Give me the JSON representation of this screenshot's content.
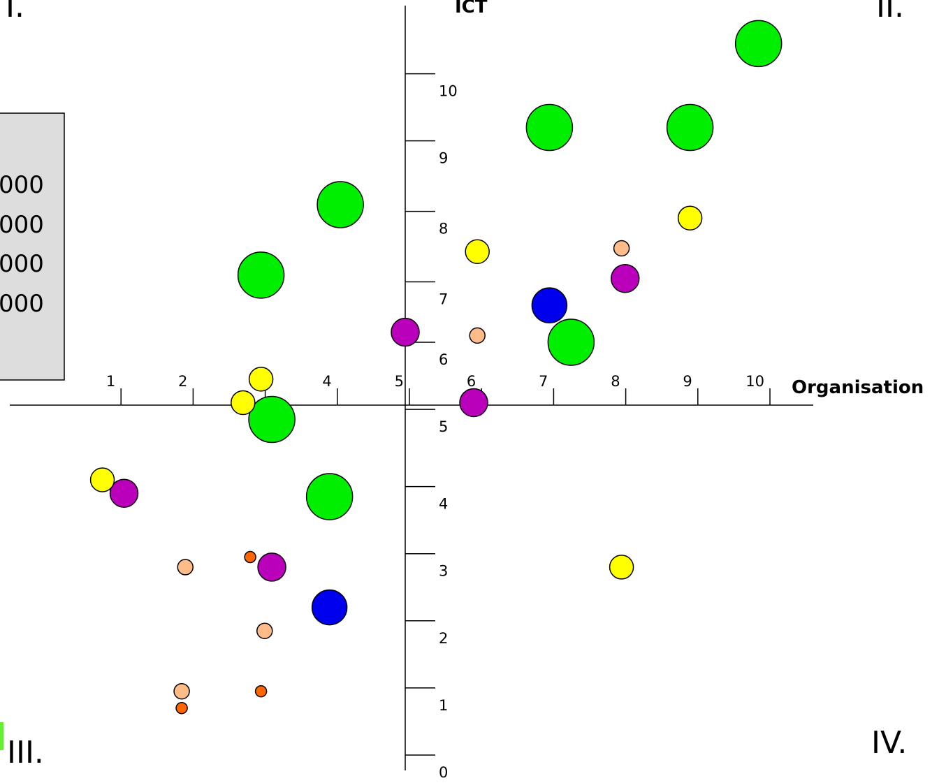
{
  "chart_data": {
    "type": "scatter",
    "title": "",
    "xlabel": "Organisation",
    "ylabel": "ICT",
    "xlim": [
      -5.2,
      5.6
    ],
    "ylim": [
      -0.1,
      10.9
    ],
    "grid": false,
    "x_ticks": [
      {
        "value": -4.0,
        "label": "1"
      },
      {
        "value": -3.0,
        "label": "2"
      },
      {
        "value": -2.0,
        "label": "3"
      },
      {
        "value": -1.0,
        "label": "4"
      },
      {
        "value": 0.0,
        "label": "5"
      },
      {
        "value": 1.0,
        "label": "6"
      },
      {
        "value": 2.0,
        "label": "7"
      },
      {
        "value": 3.0,
        "label": "8"
      },
      {
        "value": 4.0,
        "label": "9"
      },
      {
        "value": 5.0,
        "label": "10"
      }
    ],
    "y_ticks": [
      {
        "value": 0.0,
        "label": "0"
      },
      {
        "value": 1.0,
        "label": "1"
      },
      {
        "value": 2.0,
        "label": "2"
      },
      {
        "value": 3.0,
        "label": "3"
      },
      {
        "value": 4.0,
        "label": "4"
      },
      {
        "value": 5.15,
        "label": "5"
      },
      {
        "value": 6.15,
        "label": "6"
      },
      {
        "value": 7.05,
        "label": "7"
      },
      {
        "value": 8.1,
        "label": "8"
      },
      {
        "value": 9.15,
        "label": "9"
      },
      {
        "value": 10.15,
        "label": "10"
      }
    ],
    "quadrant_labels": [
      {
        "label": "I.",
        "position": "top-left"
      },
      {
        "label": "II.",
        "position": "top-right"
      },
      {
        "label": "III.",
        "position": "bottom-left"
      },
      {
        "label": "IV.",
        "position": "bottom-right"
      }
    ],
    "legend": {
      "position": "left",
      "entries": [
        "000",
        "000",
        "000",
        "000"
      ]
    },
    "bubble_colors": {
      "green": "#00ee00",
      "blue": "#0000ee",
      "purple": "#bb00bb",
      "yellow": "#ffff00",
      "peach": "#ffbb88",
      "orange": "#ff6600"
    },
    "series": [
      {
        "color": "green",
        "size": "largest",
        "points": [
          {
            "x": 4.9,
            "y": 10.6
          },
          {
            "x": 2.0,
            "y": 9.35
          },
          {
            "x": 3.95,
            "y": 9.35
          },
          {
            "x": -0.9,
            "y": 8.2
          },
          {
            "x": -2.0,
            "y": 7.15
          },
          {
            "x": 2.3,
            "y": 6.15
          },
          {
            "x": -1.85,
            "y": 5.0
          },
          {
            "x": -1.05,
            "y": 3.85
          }
        ]
      },
      {
        "color": "blue",
        "size": "large",
        "points": [
          {
            "x": 2.0,
            "y": 6.7
          },
          {
            "x": -1.05,
            "y": 2.2
          }
        ]
      },
      {
        "color": "purple",
        "size": "medium",
        "points": [
          {
            "x": 0.0,
            "y": 6.3
          },
          {
            "x": 3.05,
            "y": 7.1
          },
          {
            "x": 0.95,
            "y": 5.25
          },
          {
            "x": -3.9,
            "y": 3.9
          },
          {
            "x": -1.85,
            "y": 2.8
          }
        ]
      },
      {
        "color": "yellow",
        "size": "small",
        "points": [
          {
            "x": 3.95,
            "y": 8.0
          },
          {
            "x": 1.0,
            "y": 7.5
          },
          {
            "x": -2.0,
            "y": 5.6
          },
          {
            "x": -2.25,
            "y": 5.25
          },
          {
            "x": -4.2,
            "y": 4.1
          },
          {
            "x": 3.0,
            "y": 2.8
          }
        ]
      },
      {
        "color": "peach",
        "size": "smaller",
        "points": [
          {
            "x": 3.0,
            "y": 7.55
          },
          {
            "x": 1.0,
            "y": 6.25
          },
          {
            "x": -3.05,
            "y": 2.8
          },
          {
            "x": -1.95,
            "y": 1.85
          },
          {
            "x": -3.1,
            "y": 0.95
          }
        ]
      },
      {
        "color": "orange",
        "size": "smallest",
        "points": [
          {
            "x": -2.15,
            "y": 2.95
          },
          {
            "x": -2.0,
            "y": 0.95
          },
          {
            "x": -3.1,
            "y": 0.7
          }
        ]
      }
    ]
  }
}
